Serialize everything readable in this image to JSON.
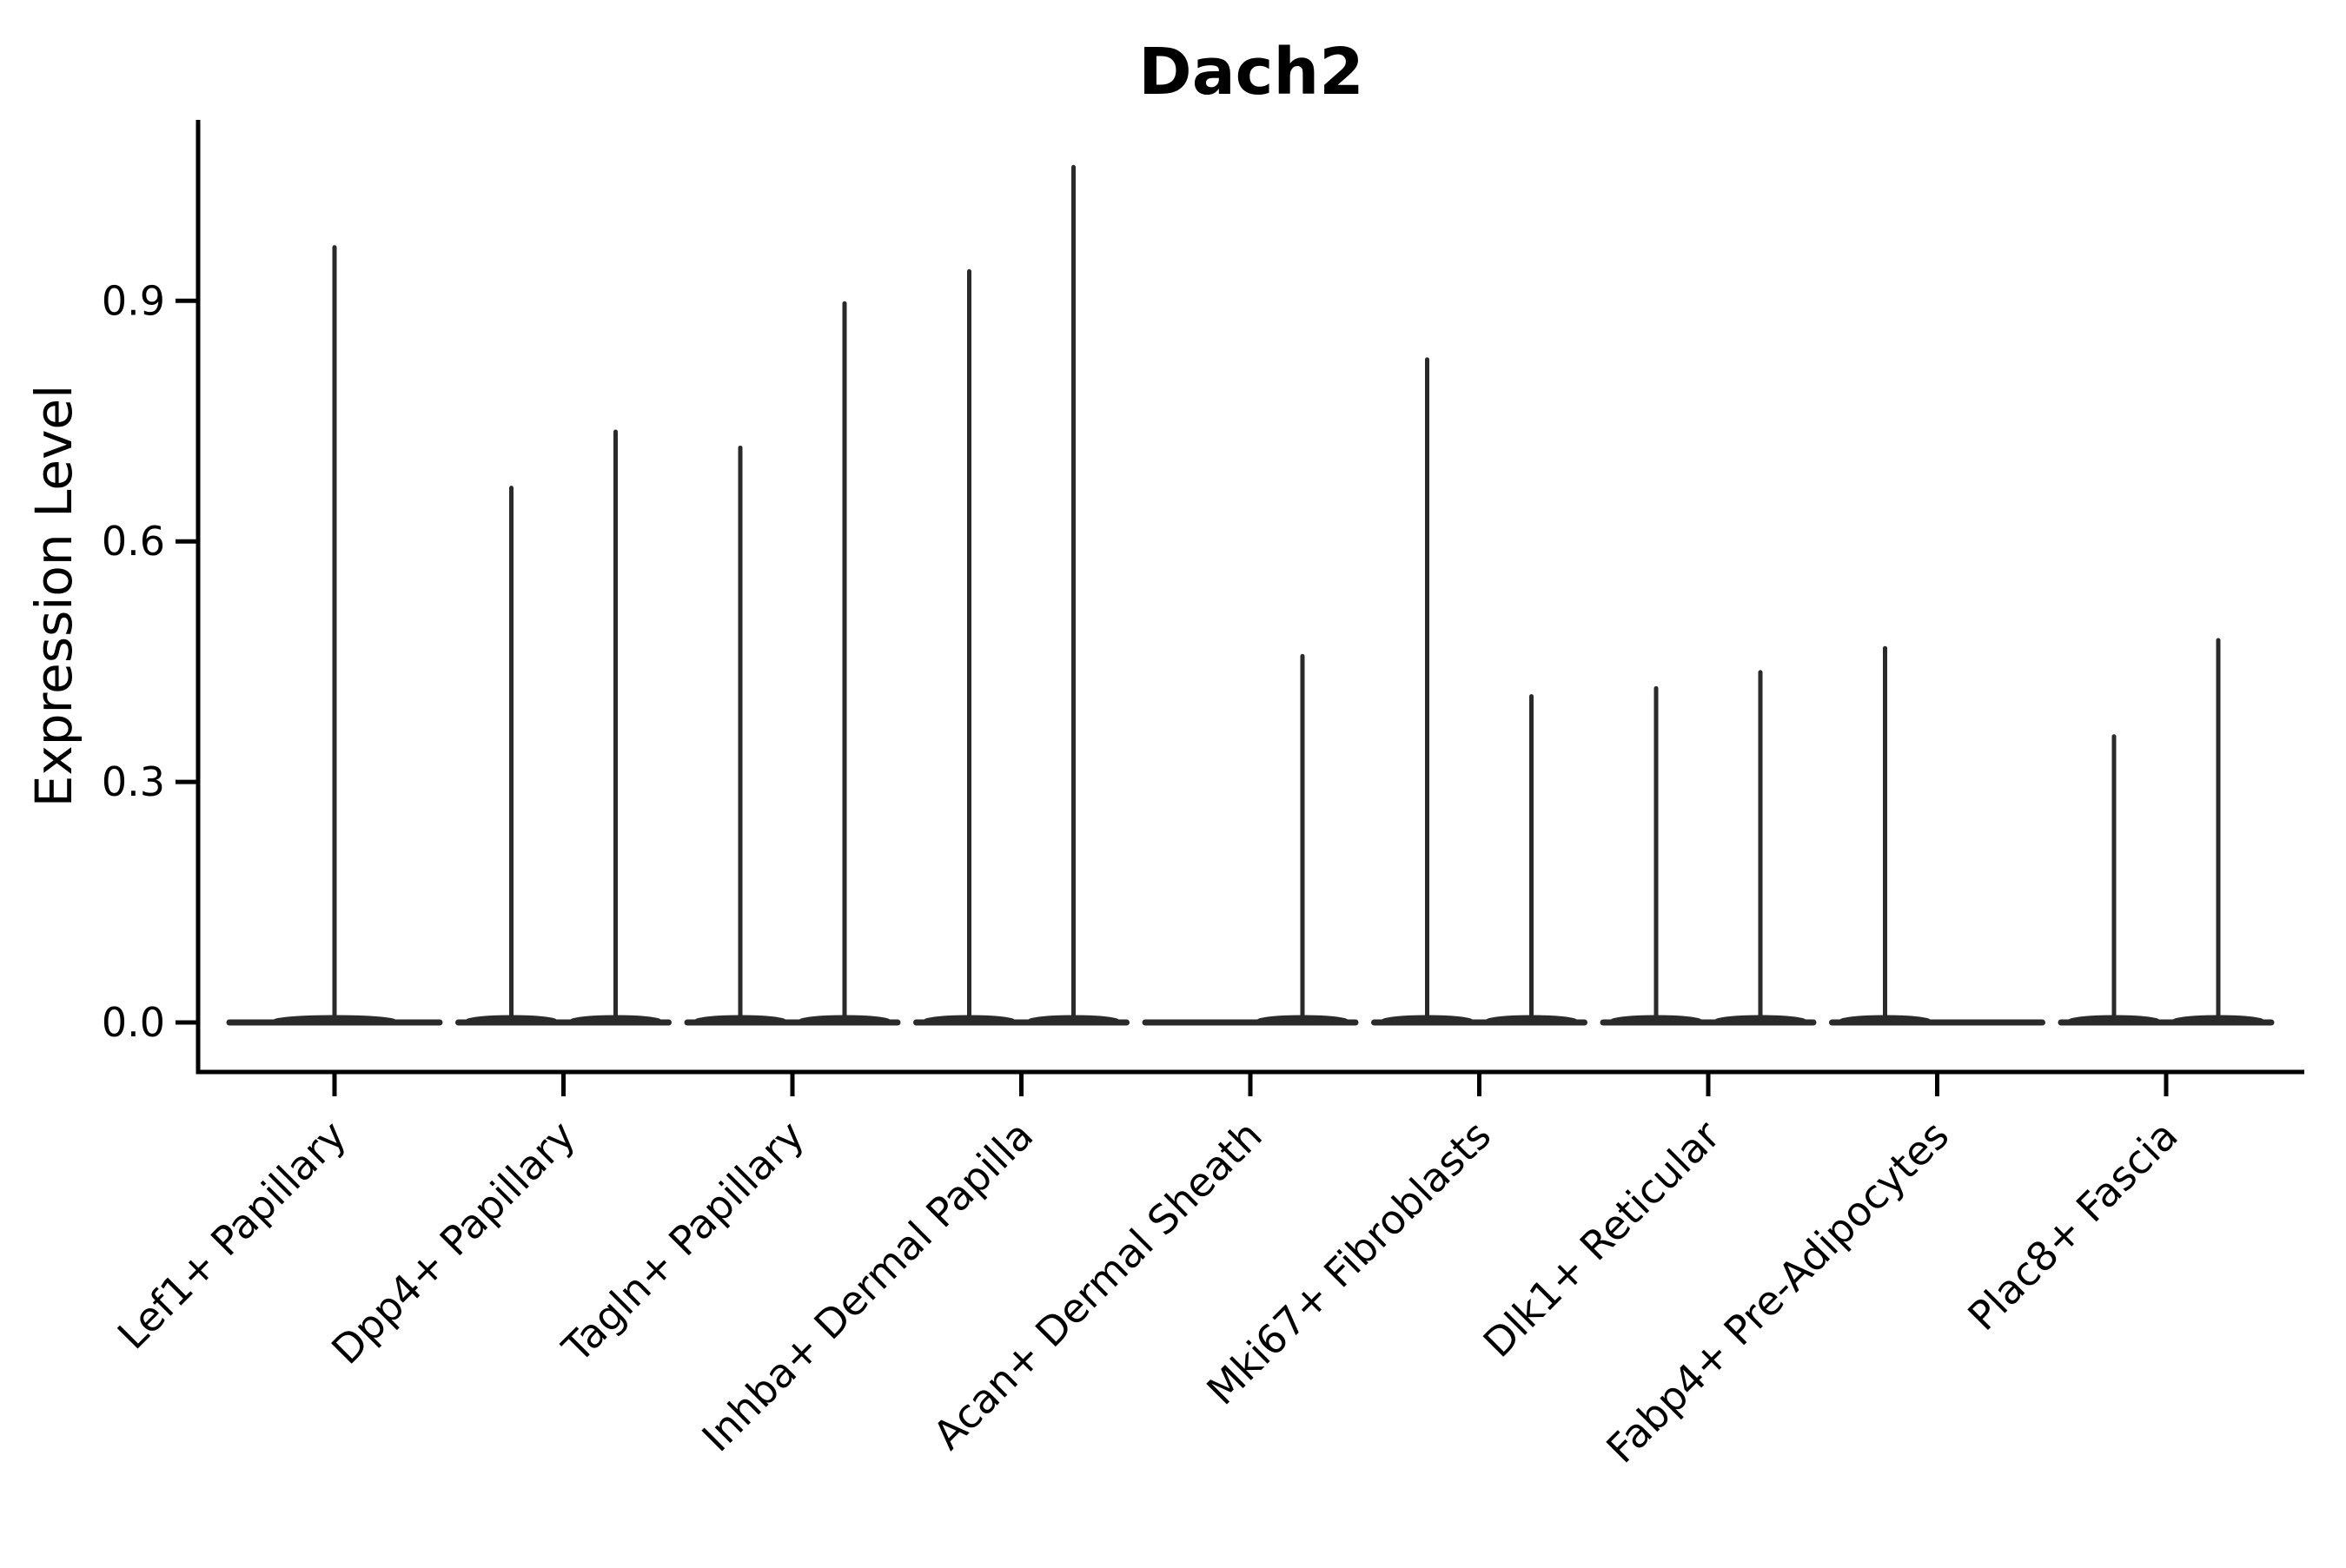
{
  "chart_data": {
    "type": "violin",
    "title": "Dach2",
    "ylabel": "Expression Level",
    "xlabel": "",
    "yticks": [
      0.0,
      0.3,
      0.6,
      0.9
    ],
    "ytick_labels": [
      "0.0",
      "0.3",
      "0.6",
      "0.9"
    ],
    "ylim": [
      -0.06,
      1.13
    ],
    "grid": false,
    "legend_position": "none",
    "categories": [
      "Lef1+ Papillary",
      "Dpp4+ Papillary",
      "Tagln+ Papillary",
      "Inhba+ Dermal Papilla",
      "Acan+ Dermal Sheath",
      "Mki67+ Fibroblasts",
      "Dlk1+ Reticular",
      "Fabp4+ Pre-Adipocytes",
      "Plac8+ Fascia"
    ],
    "groups": [
      {
        "category": "Lef1+ Papillary",
        "violins": [
          {
            "side": "center",
            "max_expression": 0.97
          }
        ]
      },
      {
        "category": "Dpp4+ Papillary",
        "violins": [
          {
            "side": "left",
            "max_expression": 0.67
          },
          {
            "side": "right",
            "max_expression": 0.74
          }
        ]
      },
      {
        "category": "Tagln+ Papillary",
        "violins": [
          {
            "side": "left",
            "max_expression": 0.72
          },
          {
            "side": "right",
            "max_expression": 0.9
          }
        ]
      },
      {
        "category": "Inhba+ Dermal Papilla",
        "violins": [
          {
            "side": "left",
            "max_expression": 0.94
          },
          {
            "side": "right",
            "max_expression": 1.07
          }
        ]
      },
      {
        "category": "Acan+ Dermal Sheath",
        "violins": [
          {
            "side": "left",
            "max_expression": 0.0
          },
          {
            "side": "right",
            "max_expression": 0.46
          }
        ]
      },
      {
        "category": "Mki67+ Fibroblasts",
        "violins": [
          {
            "side": "left",
            "max_expression": 0.83
          },
          {
            "side": "right",
            "max_expression": 0.41
          }
        ]
      },
      {
        "category": "Dlk1+ Reticular",
        "violins": [
          {
            "side": "left",
            "max_expression": 0.42
          },
          {
            "side": "right",
            "max_expression": 0.44
          }
        ]
      },
      {
        "category": "Fabp4+ Pre-Adipocytes",
        "violins": [
          {
            "side": "left",
            "max_expression": 0.47
          },
          {
            "side": "right",
            "max_expression": 0.0
          }
        ]
      },
      {
        "category": "Plac8+ Fascia",
        "violins": [
          {
            "side": "left",
            "max_expression": 0.36
          },
          {
            "side": "right",
            "max_expression": 0.48
          }
        ]
      }
    ],
    "colors": {
      "violin": "#2a2a2a",
      "axis": "#000000",
      "background": "#ffffff"
    }
  }
}
